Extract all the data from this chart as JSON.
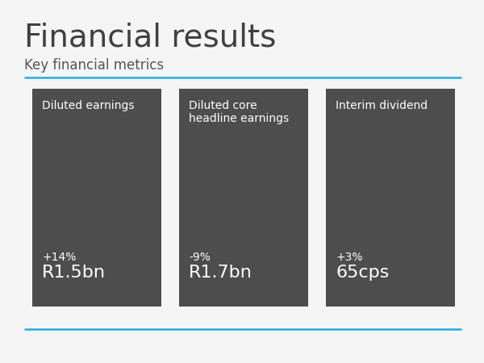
{
  "title": "Financial results",
  "subtitle": "Key financial metrics",
  "background_color": "#f5f5f5",
  "title_color": "#404040",
  "subtitle_color": "#555555",
  "line_color": "#29abe2",
  "box_color": "#4d4d4d",
  "box_text_color": "#ffffff",
  "boxes": [
    {
      "label": "Diluted earnings",
      "percent": "+14%",
      "value": "R1.5bn"
    },
    {
      "label": "Diluted core\nheadline earnings",
      "percent": "-9%",
      "value": "R1.7bn"
    },
    {
      "label": "Interim dividend",
      "percent": "+3%",
      "value": "65cps"
    }
  ],
  "title_fontsize": 28,
  "subtitle_fontsize": 12,
  "label_fontsize": 10,
  "percent_fontsize": 10,
  "value_fontsize": 16
}
